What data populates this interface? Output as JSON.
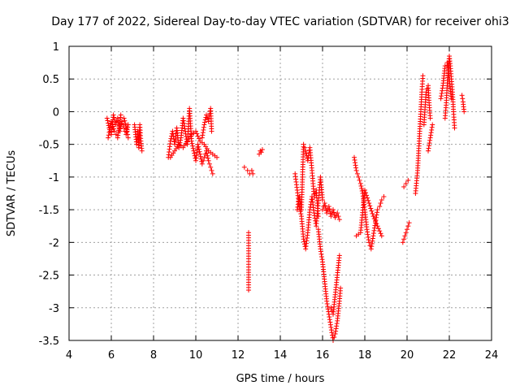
{
  "chart_data": {
    "type": "scatter",
    "title": "Day 177 of 2022, Sidereal Day-to-day VTEC variation (SDTVAR) for receiver ohi3",
    "xlabel": "GPS time / hours",
    "ylabel": "SDTVAR / TECUs",
    "xlim": [
      4,
      24
    ],
    "ylim": [
      -3.5,
      1
    ],
    "xticks": [
      4,
      6,
      8,
      10,
      12,
      14,
      16,
      18,
      20,
      22,
      24
    ],
    "yticks": [
      -3.5,
      -3,
      -2.5,
      -2,
      -1.5,
      -1,
      -0.5,
      0,
      0.5,
      1
    ],
    "ytick_labels": [
      "-3.5",
      "-3",
      "-2.5",
      "-2",
      "-1.5",
      "-1",
      "-0.5",
      "0",
      "0.5",
      "1"
    ],
    "grid": true,
    "marker": "+",
    "color": "#ff0000",
    "series": [
      {
        "name": "SDTVAR",
        "segments": [
          [
            [
              5.8,
              -0.1
            ],
            [
              5.9,
              -0.25
            ],
            [
              6.0,
              -0.35
            ],
            [
              6.1,
              -0.05
            ],
            [
              6.2,
              -0.2
            ],
            [
              6.3,
              -0.1
            ],
            [
              6.4,
              -0.3
            ],
            [
              6.5,
              -0.15
            ],
            [
              6.6,
              -0.25
            ],
            [
              6.7,
              -0.35
            ],
            [
              6.8,
              -0.2
            ]
          ],
          [
            [
              5.85,
              -0.4
            ],
            [
              6.0,
              -0.15
            ],
            [
              6.15,
              -0.3
            ],
            [
              6.3,
              -0.4
            ],
            [
              6.45,
              -0.05
            ],
            [
              6.6,
              -0.1
            ],
            [
              6.75,
              -0.3
            ],
            [
              6.8,
              -0.4
            ]
          ],
          [
            [
              7.1,
              -0.2
            ],
            [
              7.15,
              -0.35
            ],
            [
              7.2,
              -0.5
            ],
            [
              7.25,
              -0.3
            ],
            [
              7.3,
              -0.55
            ],
            [
              7.35,
              -0.2
            ],
            [
              7.4,
              -0.45
            ],
            [
              7.45,
              -0.6
            ]
          ],
          [
            [
              8.7,
              -0.7
            ],
            [
              8.8,
              -0.45
            ],
            [
              8.9,
              -0.3
            ],
            [
              9.0,
              -0.5
            ],
            [
              9.1,
              -0.25
            ],
            [
              9.2,
              -0.55
            ],
            [
              9.3,
              -0.4
            ],
            [
              9.4,
              -0.1
            ],
            [
              9.5,
              -0.3
            ],
            [
              9.6,
              -0.5
            ],
            [
              9.7,
              0.05
            ],
            [
              9.8,
              -0.45
            ],
            [
              9.9,
              -0.6
            ],
            [
              10.0,
              -0.75
            ],
            [
              10.1,
              -0.5
            ],
            [
              10.2,
              -0.65
            ],
            [
              10.3,
              -0.8
            ],
            [
              10.4,
              -0.7
            ],
            [
              10.5,
              -0.6
            ],
            [
              10.6,
              -0.75
            ],
            [
              10.7,
              -0.85
            ],
            [
              10.8,
              -0.95
            ]
          ],
          [
            [
              8.8,
              -0.7
            ],
            [
              9.0,
              -0.6
            ],
            [
              9.2,
              -0.5
            ],
            [
              9.4,
              -0.55
            ],
            [
              9.6,
              -0.45
            ],
            [
              9.8,
              -0.35
            ],
            [
              10.0,
              -0.3
            ],
            [
              10.2,
              -0.45
            ],
            [
              10.4,
              -0.5
            ],
            [
              10.6,
              -0.6
            ],
            [
              10.8,
              -0.65
            ],
            [
              11.0,
              -0.7
            ]
          ],
          [
            [
              10.3,
              -0.4
            ],
            [
              10.4,
              -0.2
            ],
            [
              10.5,
              -0.05
            ],
            [
              10.6,
              -0.15
            ],
            [
              10.7,
              0.05
            ],
            [
              10.75,
              -0.3
            ]
          ],
          [
            [
              12.3,
              -0.85
            ],
            [
              12.45,
              -0.9
            ],
            [
              12.55,
              -0.95
            ],
            [
              12.65,
              -0.9
            ],
            [
              12.7,
              -0.95
            ]
          ],
          [
            [
              13.0,
              -0.65
            ],
            [
              13.05,
              -0.6
            ],
            [
              13.1,
              -0.62
            ],
            [
              13.15,
              -0.58
            ]
          ],
          [
            [
              12.5,
              -1.85
            ],
            [
              12.5,
              -2.05
            ],
            [
              12.5,
              -2.25
            ],
            [
              12.5,
              -2.42
            ],
            [
              12.5,
              -2.57
            ],
            [
              12.5,
              -2.73
            ]
          ],
          [
            [
              14.7,
              -0.95
            ],
            [
              14.8,
              -1.2
            ],
            [
              14.9,
              -1.45
            ],
            [
              15.0,
              -1.6
            ],
            [
              15.1,
              -1.95
            ],
            [
              15.2,
              -2.1
            ],
            [
              15.3,
              -1.85
            ],
            [
              15.4,
              -1.5
            ],
            [
              15.5,
              -1.3
            ],
            [
              15.6,
              -1.55
            ],
            [
              15.7,
              -1.75
            ],
            [
              15.8,
              -1.4
            ],
            [
              15.9,
              -1.0
            ],
            [
              16.0,
              -1.35
            ]
          ],
          [
            [
              14.8,
              -1.5
            ],
            [
              14.9,
              -1.3
            ],
            [
              15.0,
              -1.5
            ],
            [
              15.1,
              -0.5
            ],
            [
              15.2,
              -0.6
            ],
            [
              15.3,
              -0.75
            ],
            [
              15.4,
              -0.55
            ],
            [
              15.5,
              -0.9
            ],
            [
              15.6,
              -1.3
            ],
            [
              15.7,
              -1.2
            ],
            [
              15.8,
              -1.6
            ]
          ],
          [
            [
              15.8,
              -1.8
            ],
            [
              15.9,
              -2.1
            ],
            [
              16.0,
              -2.3
            ],
            [
              16.1,
              -2.6
            ],
            [
              16.2,
              -2.9
            ],
            [
              16.3,
              -3.1
            ],
            [
              16.4,
              -3.3
            ],
            [
              16.5,
              -3.5
            ],
            [
              16.6,
              -3.4
            ],
            [
              16.7,
              -3.2
            ],
            [
              16.8,
              -2.9
            ],
            [
              16.85,
              -2.7
            ]
          ],
          [
            [
              16.0,
              -1.5
            ],
            [
              16.1,
              -1.4
            ],
            [
              16.2,
              -1.55
            ],
            [
              16.3,
              -1.45
            ],
            [
              16.4,
              -1.6
            ],
            [
              16.5,
              -1.5
            ],
            [
              16.6,
              -1.62
            ],
            [
              16.7,
              -1.55
            ],
            [
              16.8,
              -1.65
            ]
          ],
          [
            [
              16.4,
              -3.0
            ],
            [
              16.5,
              -3.1
            ],
            [
              16.6,
              -2.8
            ],
            [
              16.7,
              -2.5
            ],
            [
              16.8,
              -2.2
            ]
          ],
          [
            [
              17.5,
              -0.7
            ],
            [
              17.6,
              -0.9
            ],
            [
              17.7,
              -1.0
            ],
            [
              17.8,
              -1.1
            ],
            [
              17.9,
              -1.25
            ],
            [
              18.0,
              -1.5
            ],
            [
              18.1,
              -1.8
            ],
            [
              18.2,
              -2.0
            ],
            [
              18.3,
              -2.1
            ],
            [
              18.4,
              -1.9
            ],
            [
              18.5,
              -1.7
            ],
            [
              18.6,
              -1.5
            ],
            [
              18.7,
              -1.45
            ],
            [
              18.8,
              -1.35
            ],
            [
              18.9,
              -1.3
            ]
          ],
          [
            [
              17.6,
              -1.9
            ],
            [
              17.8,
              -1.85
            ],
            [
              18.0,
              -1.2
            ],
            [
              18.2,
              -1.4
            ],
            [
              18.4,
              -1.6
            ],
            [
              18.6,
              -1.75
            ],
            [
              18.8,
              -1.9
            ]
          ],
          [
            [
              19.8,
              -2.0
            ],
            [
              19.9,
              -1.9
            ],
            [
              20.0,
              -1.8
            ],
            [
              20.1,
              -1.7
            ]
          ],
          [
            [
              19.85,
              -1.15
            ],
            [
              19.95,
              -1.1
            ],
            [
              20.05,
              -1.05
            ]
          ],
          [
            [
              20.4,
              -1.25
            ],
            [
              20.5,
              -0.9
            ],
            [
              20.55,
              -0.6
            ],
            [
              20.6,
              -0.3
            ],
            [
              20.65,
              0.0
            ],
            [
              20.7,
              0.3
            ],
            [
              20.75,
              0.55
            ]
          ],
          [
            [
              20.8,
              -0.2
            ],
            [
              20.9,
              0.3
            ],
            [
              21.0,
              0.4
            ],
            [
              21.05,
              0.1
            ],
            [
              21.1,
              -0.1
            ]
          ],
          [
            [
              21.0,
              -0.6
            ],
            [
              21.1,
              -0.4
            ],
            [
              21.2,
              -0.2
            ]
          ],
          [
            [
              21.8,
              -0.1
            ],
            [
              21.85,
              0.1
            ],
            [
              21.9,
              0.4
            ],
            [
              21.95,
              0.6
            ],
            [
              22.0,
              0.85
            ],
            [
              22.05,
              0.7
            ],
            [
              22.1,
              0.5
            ],
            [
              22.15,
              0.3
            ],
            [
              22.2,
              0.0
            ],
            [
              22.25,
              -0.25
            ]
          ],
          [
            [
              21.6,
              0.2
            ],
            [
              21.7,
              0.4
            ],
            [
              21.8,
              0.7
            ],
            [
              21.9,
              0.75
            ],
            [
              22.0,
              0.5
            ],
            [
              22.1,
              0.2
            ]
          ],
          [
            [
              22.6,
              0.25
            ],
            [
              22.65,
              0.15
            ],
            [
              22.7,
              0.0
            ]
          ]
        ]
      }
    ]
  }
}
